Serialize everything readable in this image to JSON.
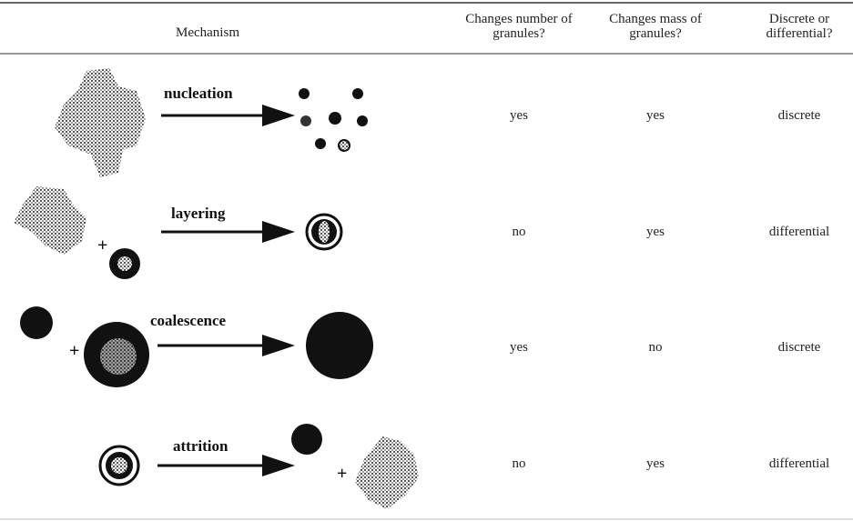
{
  "table": {
    "header": [
      "Mechanism",
      "Changes number of granules?",
      "Changes mass of granules?",
      "Discrete or differential?"
    ],
    "rows": [
      {
        "mechanism": "nucleation",
        "cells": [
          "yes",
          "yes",
          "discrete"
        ]
      },
      {
        "mechanism": "layering",
        "cells": [
          "no",
          "yes",
          "differential"
        ]
      },
      {
        "mechanism": "coalescence",
        "cells": [
          "yes",
          "no",
          "discrete"
        ]
      },
      {
        "mechanism": "attrition",
        "cells": [
          "no",
          "yes",
          "differential"
        ]
      }
    ]
  }
}
